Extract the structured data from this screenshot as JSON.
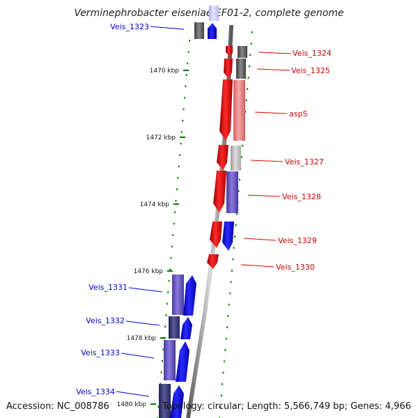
{
  "title": "Verminephrobacter eiseniae EF01-2, complete genome",
  "footer": {
    "accession": "Accession: NC_008786",
    "topology": "Topology: circular; Length: 5,566,749 bp; Genes: 4,966"
  },
  "axis_ticks": [
    "1470 kbp",
    "1472 kbp",
    "1474 kbp",
    "1476 kbp",
    "1478 kbp",
    "1480 kbp"
  ],
  "genes_right": [
    "Veis_1324",
    "Veis_1325",
    "aspS",
    "Veis_1327",
    "Veis_1328",
    "Veis_1329",
    "Veis_1330"
  ],
  "genes_left": [
    "Veis_1323",
    "Veis_1331",
    "Veis_1332",
    "Veis_1333",
    "Veis_1334"
  ],
  "colors": {
    "forward_strand": "#ff0000",
    "reverse_strand": "#0000ff",
    "backbone": "#888888",
    "tick": "#007700",
    "gene_label_right": "#cc0000",
    "gene_label_left": "#0000cc"
  }
}
